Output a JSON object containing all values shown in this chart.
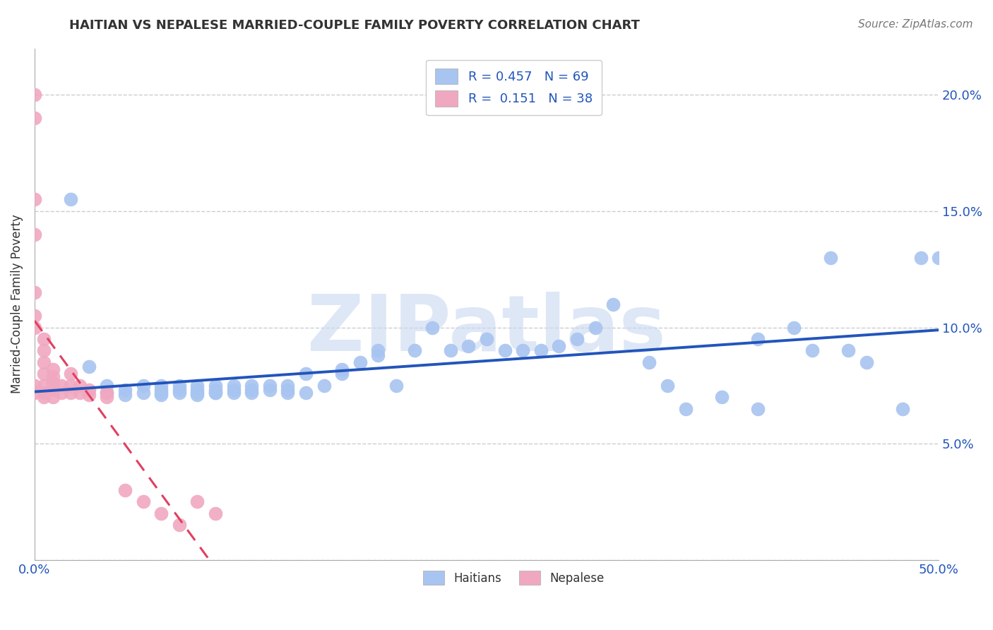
{
  "title": "HAITIAN VS NEPALESE MARRIED-COUPLE FAMILY POVERTY CORRELATION CHART",
  "source": "Source: ZipAtlas.com",
  "ylabel": "Married-Couple Family Poverty",
  "xlim": [
    0.0,
    0.5
  ],
  "ylim": [
    0.0,
    0.22
  ],
  "xticks": [
    0.0,
    0.1,
    0.2,
    0.3,
    0.4,
    0.5
  ],
  "yticks": [
    0.0,
    0.05,
    0.1,
    0.15,
    0.2
  ],
  "xtick_labels_show": [
    "0.0%",
    "",
    "",
    "",
    "",
    "50.0%"
  ],
  "ytick_labels_right": [
    "",
    "5.0%",
    "10.0%",
    "15.0%",
    "20.0%"
  ],
  "haitian_x": [
    0.02,
    0.03,
    0.04,
    0.04,
    0.05,
    0.05,
    0.06,
    0.06,
    0.07,
    0.07,
    0.07,
    0.07,
    0.08,
    0.08,
    0.08,
    0.09,
    0.09,
    0.09,
    0.09,
    0.1,
    0.1,
    0.1,
    0.1,
    0.11,
    0.11,
    0.11,
    0.12,
    0.12,
    0.12,
    0.13,
    0.13,
    0.14,
    0.14,
    0.14,
    0.15,
    0.15,
    0.16,
    0.17,
    0.17,
    0.18,
    0.19,
    0.19,
    0.2,
    0.21,
    0.22,
    0.23,
    0.24,
    0.25,
    0.26,
    0.27,
    0.28,
    0.29,
    0.3,
    0.31,
    0.32,
    0.34,
    0.35,
    0.36,
    0.38,
    0.4,
    0.4,
    0.42,
    0.43,
    0.44,
    0.45,
    0.46,
    0.48,
    0.49,
    0.5
  ],
  "haitian_y": [
    0.155,
    0.083,
    0.075,
    0.072,
    0.073,
    0.071,
    0.075,
    0.072,
    0.071,
    0.073,
    0.075,
    0.072,
    0.073,
    0.075,
    0.072,
    0.072,
    0.073,
    0.075,
    0.071,
    0.072,
    0.073,
    0.075,
    0.072,
    0.073,
    0.075,
    0.072,
    0.073,
    0.075,
    0.072,
    0.073,
    0.075,
    0.072,
    0.073,
    0.075,
    0.08,
    0.072,
    0.075,
    0.08,
    0.082,
    0.085,
    0.088,
    0.09,
    0.075,
    0.09,
    0.1,
    0.09,
    0.092,
    0.095,
    0.09,
    0.09,
    0.09,
    0.092,
    0.095,
    0.1,
    0.11,
    0.085,
    0.075,
    0.065,
    0.07,
    0.095,
    0.065,
    0.1,
    0.09,
    0.13,
    0.09,
    0.085,
    0.065,
    0.13,
    0.13
  ],
  "nepalese_x": [
    0.0,
    0.0,
    0.0,
    0.0,
    0.0,
    0.0,
    0.0,
    0.0,
    0.0,
    0.005,
    0.005,
    0.005,
    0.005,
    0.005,
    0.005,
    0.005,
    0.01,
    0.01,
    0.01,
    0.01,
    0.01,
    0.015,
    0.015,
    0.02,
    0.02,
    0.02,
    0.025,
    0.025,
    0.03,
    0.03,
    0.04,
    0.04,
    0.05,
    0.06,
    0.07,
    0.08,
    0.09,
    0.1
  ],
  "nepalese_y": [
    0.2,
    0.19,
    0.155,
    0.14,
    0.115,
    0.105,
    0.1,
    0.075,
    0.072,
    0.095,
    0.09,
    0.085,
    0.08,
    0.075,
    0.072,
    0.07,
    0.082,
    0.079,
    0.076,
    0.073,
    0.07,
    0.075,
    0.072,
    0.08,
    0.075,
    0.072,
    0.075,
    0.072,
    0.073,
    0.071,
    0.072,
    0.07,
    0.03,
    0.025,
    0.02,
    0.015,
    0.025,
    0.02
  ],
  "haitian_color": "#a8c4f0",
  "nepalese_color": "#f0a8c0",
  "haitian_line_color": "#2255bb",
  "nepalese_line_color": "#e04060",
  "haitian_R": 0.457,
  "haitian_N": 69,
  "nepalese_R": 0.151,
  "nepalese_N": 38,
  "watermark": "ZIPatlas",
  "watermark_color": "#c8d8f0",
  "grid_color": "#cccccc",
  "background_color": "#ffffff",
  "title_color": "#333333",
  "source_color": "#777777"
}
